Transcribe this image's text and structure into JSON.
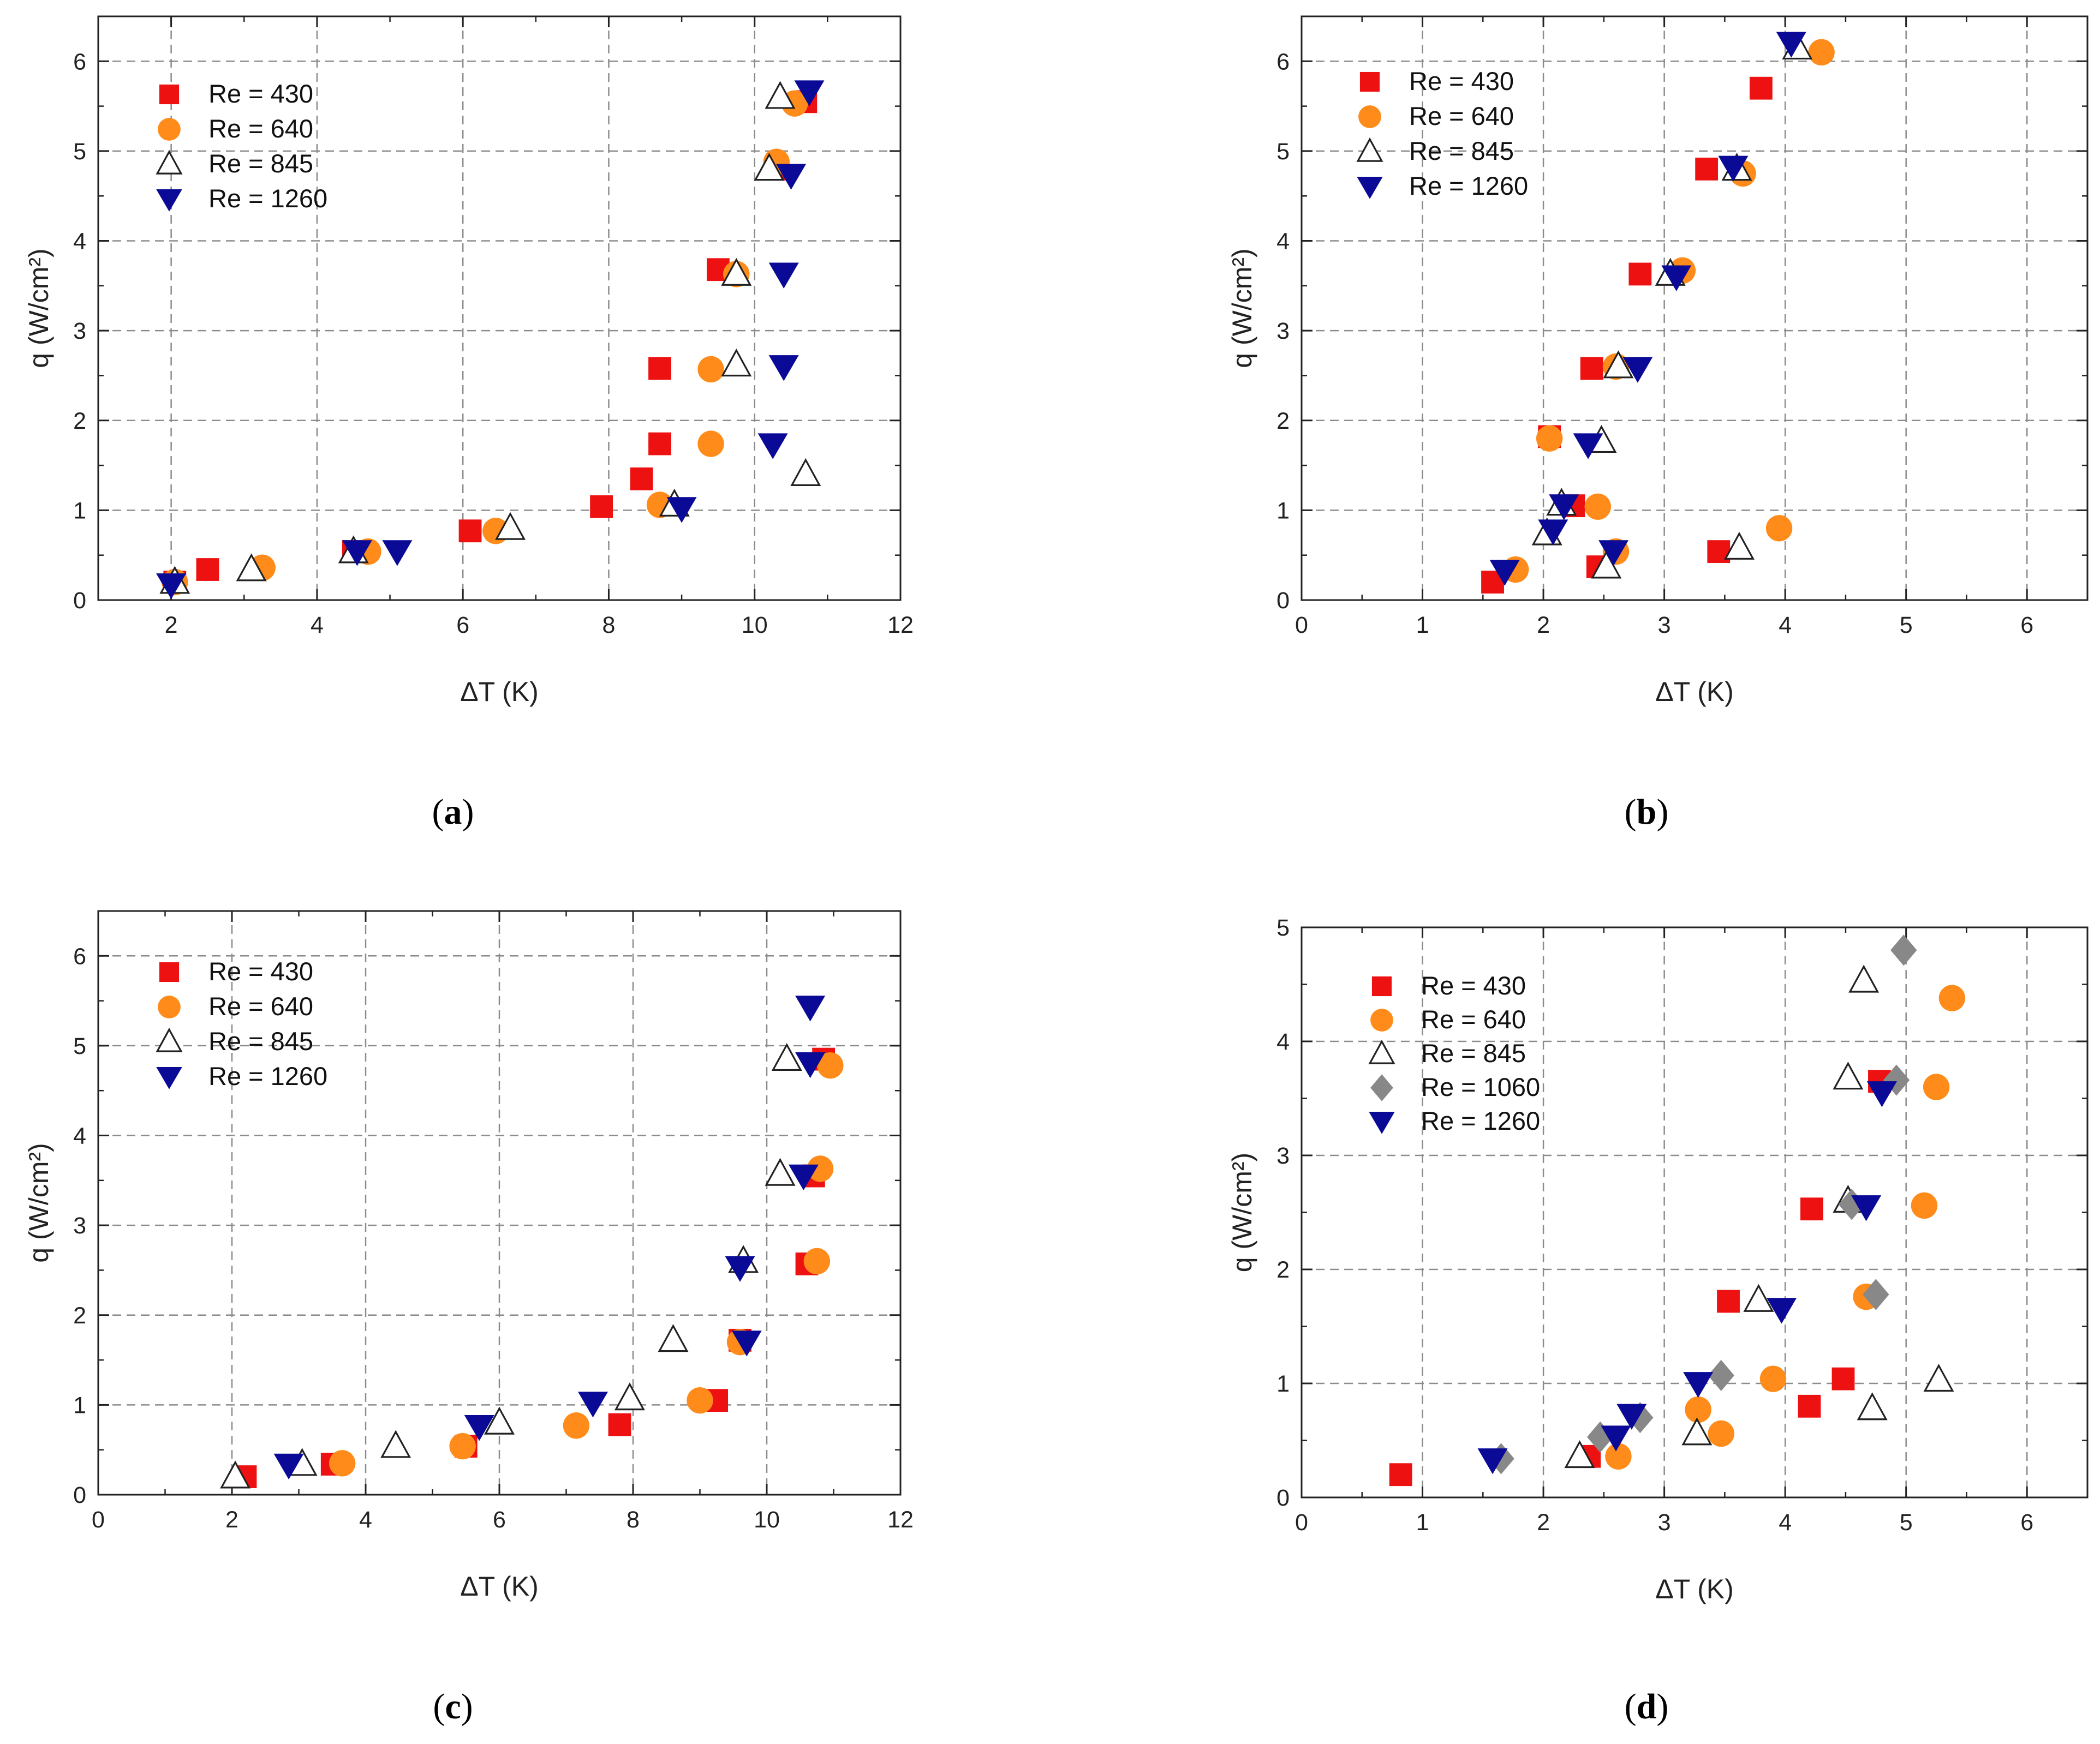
{
  "figure": {
    "colors": {
      "re430": "#ee1111",
      "re640": "#ff8c1a",
      "re845": "#222222",
      "re1060": "#888888",
      "re1260": "#0a0a96",
      "grid": "#8c8c8c"
    }
  },
  "chart_data": [
    {
      "id": "a",
      "type": "scatter",
      "panel_label": "a",
      "xlabel": "ΔT (K)",
      "ylabel": "q (W/cm²)",
      "xlim": [
        1,
        12
      ],
      "ylim": [
        0,
        6.5
      ],
      "xticks": [
        2,
        4,
        6,
        8,
        10,
        12
      ],
      "yticks": [
        0,
        1,
        2,
        3,
        4,
        5,
        6
      ],
      "grid": true,
      "legend_position": "top-left",
      "series": [
        {
          "name": "Re = 430",
          "marker": "square",
          "color": "#ee1111",
          "points": [
            [
              2.05,
              0.2
            ],
            [
              2.5,
              0.34
            ],
            [
              4.5,
              0.54
            ],
            [
              6.1,
              0.77
            ],
            [
              7.9,
              1.04
            ],
            [
              8.45,
              1.35
            ],
            [
              8.7,
              1.74
            ],
            [
              8.7,
              2.58
            ],
            [
              9.5,
              3.68
            ],
            [
              10.3,
              4.8
            ],
            [
              10.7,
              5.55
            ]
          ]
        },
        {
          "name": "Re = 640",
          "marker": "circle",
          "color": "#ff8c1a",
          "points": [
            [
              2.05,
              0.2
            ],
            [
              3.25,
              0.36
            ],
            [
              4.7,
              0.54
            ],
            [
              6.45,
              0.77
            ],
            [
              8.7,
              1.06
            ],
            [
              9.4,
              1.74
            ],
            [
              9.4,
              2.57
            ],
            [
              9.75,
              3.63
            ],
            [
              10.3,
              4.88
            ],
            [
              10.55,
              5.53
            ]
          ]
        },
        {
          "name": "Re = 845",
          "marker": "triangle-up-open",
          "color": "#222222",
          "points": [
            [
              2.05,
              0.2
            ],
            [
              3.1,
              0.34
            ],
            [
              4.5,
              0.54
            ],
            [
              6.65,
              0.8
            ],
            [
              8.9,
              1.06
            ],
            [
              9.75,
              2.62
            ],
            [
              9.75,
              3.63
            ],
            [
              10.2,
              4.8
            ],
            [
              10.35,
              5.6
            ],
            [
              10.7,
              1.4
            ]
          ]
        },
        {
          "name": "Re = 1260",
          "marker": "triangle-down",
          "color": "#0a0a96",
          "points": [
            [
              2.0,
              0.17
            ],
            [
              4.55,
              0.54
            ],
            [
              5.1,
              0.54
            ],
            [
              9.0,
              1.02
            ],
            [
              10.25,
              1.73
            ],
            [
              10.4,
              2.6
            ],
            [
              10.4,
              3.63
            ],
            [
              10.5,
              4.73
            ],
            [
              10.75,
              5.66
            ]
          ]
        }
      ]
    },
    {
      "id": "b",
      "type": "scatter",
      "panel_label": "b",
      "xlabel": "ΔT (K)",
      "ylabel": "q (W/cm²)",
      "xlim": [
        0,
        6.5
      ],
      "ylim": [
        0,
        6.5
      ],
      "xticks": [
        0,
        1,
        2,
        3,
        4,
        5,
        6
      ],
      "yticks": [
        0,
        1,
        2,
        3,
        4,
        5,
        6
      ],
      "grid": true,
      "legend_position": "top-left",
      "series": [
        {
          "name": "Re = 430",
          "marker": "square",
          "color": "#ee1111",
          "points": [
            [
              1.58,
              0.2
            ],
            [
              2.45,
              0.37
            ],
            [
              3.45,
              0.54
            ],
            [
              2.25,
              1.05
            ],
            [
              2.05,
              1.82
            ],
            [
              2.4,
              2.58
            ],
            [
              2.8,
              3.63
            ],
            [
              3.35,
              4.8
            ],
            [
              3.8,
              5.7
            ]
          ]
        },
        {
          "name": "Re = 640",
          "marker": "circle",
          "color": "#ff8c1a",
          "points": [
            [
              1.77,
              0.34
            ],
            [
              2.6,
              0.54
            ],
            [
              2.45,
              1.04
            ],
            [
              2.05,
              1.8
            ],
            [
              2.6,
              2.6
            ],
            [
              3.15,
              3.67
            ],
            [
              3.65,
              4.75
            ],
            [
              3.95,
              0.8
            ],
            [
              4.3,
              6.1
            ]
          ]
        },
        {
          "name": "Re = 845",
          "marker": "triangle-up-open",
          "color": "#222222",
          "points": [
            [
              2.52,
              0.37
            ],
            [
              2.03,
              0.74
            ],
            [
              2.15,
              1.07
            ],
            [
              2.48,
              1.77
            ],
            [
              2.62,
              2.6
            ],
            [
              3.05,
              3.63
            ],
            [
              3.6,
              4.8
            ],
            [
              3.62,
              0.58
            ],
            [
              4.1,
              6.15
            ]
          ]
        },
        {
          "name": "Re = 1260",
          "marker": "triangle-down",
          "color": "#0a0a96",
          "points": [
            [
              1.68,
              0.32
            ],
            [
              2.08,
              0.77
            ],
            [
              2.17,
              1.05
            ],
            [
              2.37,
              1.73
            ],
            [
              2.58,
              0.54
            ],
            [
              2.78,
              2.58
            ],
            [
              3.1,
              3.6
            ],
            [
              3.57,
              4.82
            ],
            [
              4.05,
              6.2
            ]
          ]
        }
      ]
    },
    {
      "id": "c",
      "type": "scatter",
      "panel_label": "c",
      "xlabel": "ΔT (K)",
      "ylabel": "q (W/cm²)",
      "xlim": [
        0,
        12
      ],
      "ylim": [
        0,
        6.5
      ],
      "xticks": [
        0,
        2,
        4,
        6,
        8,
        10,
        12
      ],
      "yticks": [
        0,
        1,
        2,
        3,
        4,
        5,
        6
      ],
      "grid": true,
      "legend_position": "top-left",
      "series": [
        {
          "name": "Re = 430",
          "marker": "square",
          "color": "#ee1111",
          "points": [
            [
              2.2,
              0.2
            ],
            [
              3.5,
              0.34
            ],
            [
              5.5,
              0.54
            ],
            [
              7.8,
              0.78
            ],
            [
              9.25,
              1.05
            ],
            [
              9.6,
              1.72
            ],
            [
              10.6,
              2.57
            ],
            [
              10.7,
              3.55
            ],
            [
              10.85,
              4.85
            ]
          ]
        },
        {
          "name": "Re = 640",
          "marker": "circle",
          "color": "#ff8c1a",
          "points": [
            [
              3.65,
              0.35
            ],
            [
              5.45,
              0.54
            ],
            [
              7.15,
              0.77
            ],
            [
              9.0,
              1.05
            ],
            [
              9.6,
              1.7
            ],
            [
              10.75,
              2.6
            ],
            [
              10.8,
              3.63
            ],
            [
              10.95,
              4.78
            ]
          ]
        },
        {
          "name": "Re = 845",
          "marker": "triangle-up-open",
          "color": "#222222",
          "points": [
            [
              2.05,
              0.2
            ],
            [
              3.05,
              0.34
            ],
            [
              4.45,
              0.54
            ],
            [
              6.0,
              0.8
            ],
            [
              7.95,
              1.07
            ],
            [
              8.6,
              1.72
            ],
            [
              9.65,
              2.6
            ],
            [
              10.2,
              3.57
            ],
            [
              10.3,
              4.85
            ]
          ]
        },
        {
          "name": "Re = 1260",
          "marker": "triangle-down",
          "color": "#0a0a96",
          "points": [
            [
              2.85,
              0.33
            ],
            [
              5.7,
              0.76
            ],
            [
              7.4,
              1.02
            ],
            [
              9.7,
              1.7
            ],
            [
              9.6,
              2.53
            ],
            [
              10.55,
              3.55
            ],
            [
              10.65,
              4.8
            ],
            [
              10.65,
              5.43
            ]
          ]
        }
      ]
    },
    {
      "id": "d",
      "type": "scatter",
      "panel_label": "d",
      "xlabel": "ΔT (K)",
      "ylabel": "q (W/cm²)",
      "xlim": [
        0,
        6.5
      ],
      "ylim": [
        0,
        5
      ],
      "xticks": [
        0,
        1,
        2,
        3,
        4,
        5,
        6
      ],
      "yticks": [
        0,
        1,
        2,
        3,
        4,
        5
      ],
      "grid": true,
      "legend_position": "top-left",
      "series": [
        {
          "name": "Re = 430",
          "marker": "square",
          "color": "#ee1111",
          "points": [
            [
              0.82,
              0.2
            ],
            [
              2.38,
              0.36
            ],
            [
              4.2,
              0.8
            ],
            [
              4.48,
              1.04
            ],
            [
              3.53,
              1.72
            ],
            [
              4.22,
              2.53
            ],
            [
              4.78,
              3.65
            ]
          ]
        },
        {
          "name": "Re = 640",
          "marker": "circle",
          "color": "#ff8c1a",
          "points": [
            [
              2.62,
              0.36
            ],
            [
              3.28,
              0.77
            ],
            [
              3.47,
              0.56
            ],
            [
              3.9,
              1.04
            ],
            [
              4.67,
              1.76
            ],
            [
              5.15,
              2.56
            ],
            [
              5.25,
              3.6
            ],
            [
              5.38,
              4.38
            ]
          ]
        },
        {
          "name": "Re = 845",
          "marker": "triangle-up-open",
          "color": "#222222",
          "points": [
            [
              2.3,
              0.36
            ],
            [
              3.27,
              0.56
            ],
            [
              4.72,
              0.78
            ],
            [
              5.27,
              1.03
            ],
            [
              3.78,
              1.73
            ],
            [
              4.52,
              2.6
            ],
            [
              4.52,
              3.68
            ],
            [
              4.65,
              4.53
            ]
          ]
        },
        {
          "name": "Re = 1060",
          "marker": "diamond",
          "color": "#888888",
          "points": [
            [
              1.65,
              0.34
            ],
            [
              2.47,
              0.53
            ],
            [
              2.8,
              0.7
            ],
            [
              3.47,
              1.07
            ],
            [
              4.75,
              1.78
            ],
            [
              4.55,
              2.57
            ],
            [
              4.92,
              3.66
            ],
            [
              4.98,
              4.8
            ]
          ]
        },
        {
          "name": "Re = 1260",
          "marker": "triangle-down",
          "color": "#0a0a96",
          "points": [
            [
              1.58,
              0.33
            ],
            [
              2.6,
              0.53
            ],
            [
              2.73,
              0.72
            ],
            [
              3.28,
              1.0
            ],
            [
              3.97,
              1.65
            ],
            [
              4.67,
              2.55
            ],
            [
              4.8,
              3.55
            ]
          ]
        }
      ]
    }
  ]
}
